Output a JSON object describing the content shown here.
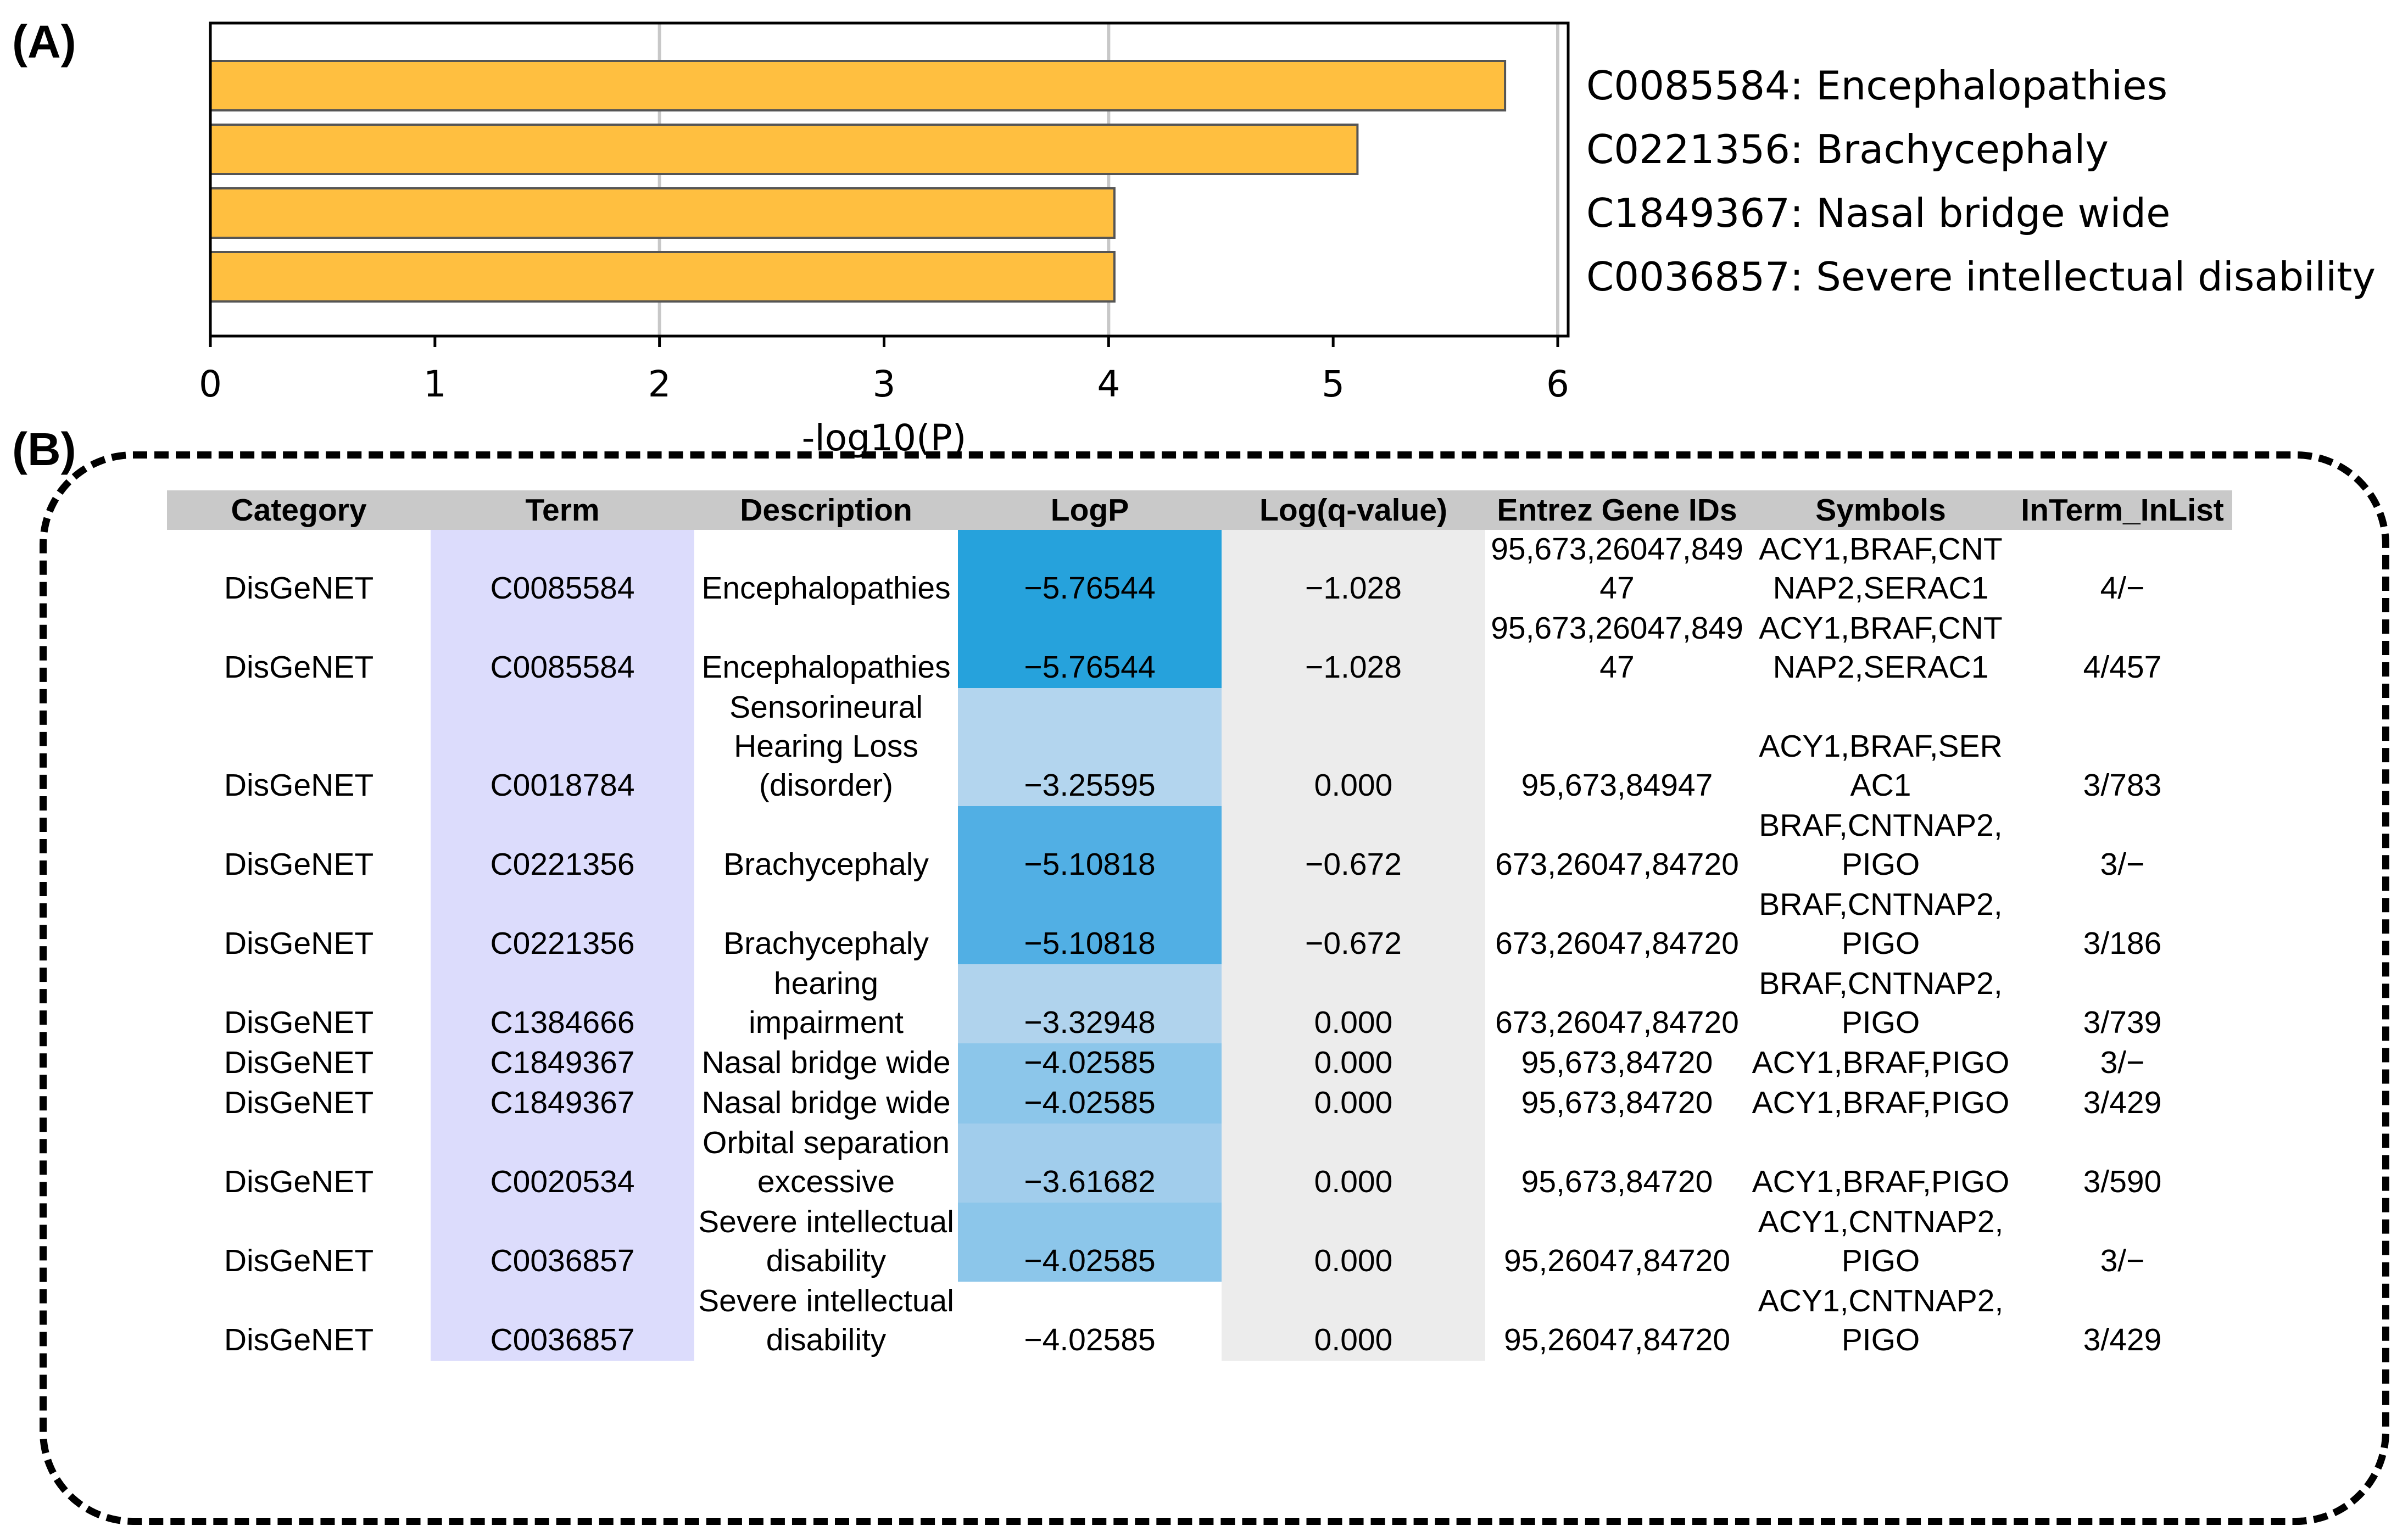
{
  "panels": {
    "a_label": "(A)",
    "b_label": "(B)"
  },
  "chart_data": {
    "type": "bar",
    "orientation": "horizontal",
    "categories": [
      "C0085584: Encephalopathies",
      "C0221356: Brachycephaly",
      "C1849367: Nasal bridge wide",
      "C0036857: Severe intellectual disability"
    ],
    "values": [
      5.76544,
      5.10818,
      4.02585,
      4.02585
    ],
    "xlabel": "-log10(P)",
    "ylabel": "",
    "xlim": [
      0,
      6
    ],
    "xticks": [
      0,
      1,
      2,
      3,
      4,
      5,
      6
    ],
    "vertical_gridlines": [
      2,
      4,
      6
    ],
    "bar_color": "#ffbf40",
    "bar_edge_color": "#555555",
    "grid_color": "#c8c8c8"
  },
  "table": {
    "headers": [
      "Category",
      "Term",
      "Description",
      "LogP",
      "Log(q-value)",
      "Entrez Gene IDs",
      "Symbols",
      "InTerm_InList"
    ],
    "rows": [
      {
        "category": "DisGeNET",
        "term": "C0085584",
        "description": "Encephalopathies",
        "logp": "−5.76544",
        "logq": "−1.028",
        "entrez": "95,673,26047,84947",
        "symbols": "ACY1,BRAF,CNTNAP2,SERAC1",
        "interm": "4/−",
        "logp_color": "#26a2dc"
      },
      {
        "category": "DisGeNET",
        "term": "C0085584",
        "description": "Encephalopathies",
        "logp": "−5.76544",
        "logq": "−1.028",
        "entrez": "95,673,26047,84947",
        "symbols": "ACY1,BRAF,CNTNAP2,SERAC1",
        "interm": "4/457",
        "logp_color": "#26a2dc"
      },
      {
        "category": "DisGeNET",
        "term": "C0018784",
        "description": "Sensorineural Hearing Loss (disorder)",
        "logp": "−3.25595",
        "logq": "0.000",
        "entrez": "95,673,84947",
        "symbols": "ACY1,BRAF,SERAC1",
        "interm": "3/783",
        "logp_color": "#b3d5ee"
      },
      {
        "category": "DisGeNET",
        "term": "C0221356",
        "description": "Brachycephaly",
        "logp": "−5.10818",
        "logq": "−0.672",
        "entrez": "673,26047,84720",
        "symbols": "BRAF,CNTNAP2,PIGO",
        "interm": "3/−",
        "logp_color": "#51afe4"
      },
      {
        "category": "DisGeNET",
        "term": "C0221356",
        "description": "Brachycephaly",
        "logp": "−5.10818",
        "logq": "−0.672",
        "entrez": "673,26047,84720",
        "symbols": "BRAF,CNTNAP2,PIGO",
        "interm": "3/186",
        "logp_color": "#51afe4"
      },
      {
        "category": "DisGeNET",
        "term": "C1384666",
        "description": "hearing impairment",
        "logp": "−3.32948",
        "logq": "0.000",
        "entrez": "673,26047,84720",
        "symbols": "BRAF,CNTNAP2,PIGO",
        "interm": "3/739",
        "logp_color": "#b0d3ed"
      },
      {
        "category": "DisGeNET",
        "term": "C1849367",
        "description": "Nasal bridge wide",
        "logp": "−4.02585",
        "logq": "0.000",
        "entrez": "95,673,84720",
        "symbols": "ACY1,BRAF,PIGO",
        "interm": "3/−",
        "logp_color": "#8cc6ea"
      },
      {
        "category": "DisGeNET",
        "term": "C1849367",
        "description": "Nasal bridge wide",
        "logp": "−4.02585",
        "logq": "0.000",
        "entrez": "95,673,84720",
        "symbols": "ACY1,BRAF,PIGO",
        "interm": "3/429",
        "logp_color": "#8cc6ea"
      },
      {
        "category": "DisGeNET",
        "term": "C0020534",
        "description": "Orbital separation excessive",
        "logp": "−3.61682",
        "logq": "0.000",
        "entrez": "95,673,84720",
        "symbols": "ACY1,BRAF,PIGO",
        "interm": "3/590",
        "logp_color": "#a1cdec"
      },
      {
        "category": "DisGeNET",
        "term": "C0036857",
        "description": "Severe intellectual disability",
        "logp": "−4.02585",
        "logq": "0.000",
        "entrez": "95,26047,84720",
        "symbols": "ACY1,CNTNAP2,PIGO",
        "interm": "3/−",
        "logp_color": "#8cc6ea"
      },
      {
        "category": "DisGeNET",
        "term": "C0036857",
        "description": "Severe intellectual disability",
        "logp": "−4.02585",
        "logq": "0.000",
        "entrez": "95,26047,84720",
        "symbols": "ACY1,CNTNAP2,PIGO",
        "interm": "3/429",
        "logp_color": "#ffffff"
      }
    ]
  }
}
